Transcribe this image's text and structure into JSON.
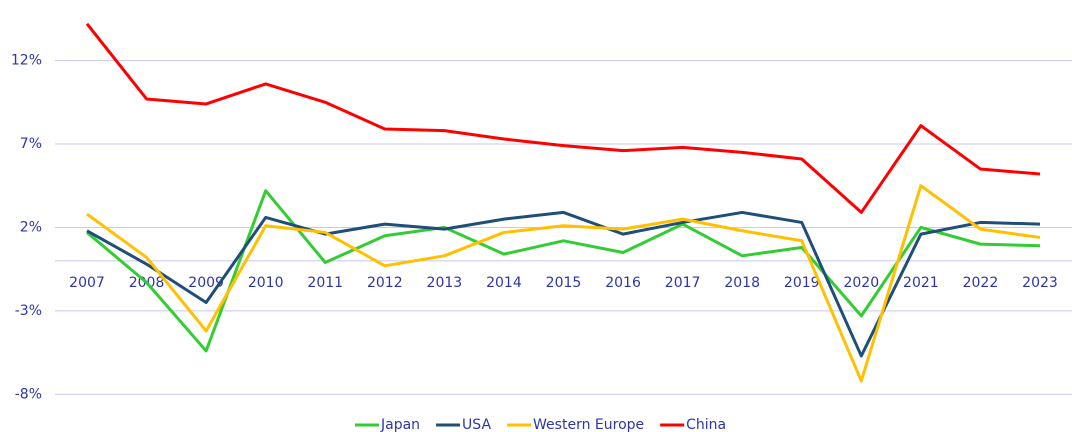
{
  "chart_data": {
    "type": "line",
    "categories": [
      "2007",
      "2008",
      "2009",
      "2010",
      "2011",
      "2012",
      "2013",
      "2014",
      "2015",
      "2016",
      "2017",
      "2018",
      "2019",
      "2020",
      "2021",
      "2022",
      "2023"
    ],
    "series": [
      {
        "name": "Japan",
        "color": "#33cc33",
        "values": [
          1.7,
          -1.3,
          -5.4,
          4.2,
          -0.1,
          1.5,
          2.0,
          0.4,
          1.2,
          0.5,
          2.2,
          0.3,
          0.8,
          -3.3,
          2.0,
          1.0,
          0.9
        ]
      },
      {
        "name": "USA",
        "color": "#1f4e79",
        "values": [
          1.8,
          -0.2,
          -2.5,
          2.6,
          1.6,
          2.2,
          1.9,
          2.5,
          2.9,
          1.6,
          2.3,
          2.9,
          2.3,
          -5.7,
          1.6,
          2.3,
          2.2
        ]
      },
      {
        "name": "Western Europe",
        "color": "#ffc000",
        "values": [
          2.8,
          0.2,
          -4.2,
          2.1,
          1.7,
          -0.3,
          0.3,
          1.7,
          2.1,
          1.9,
          2.5,
          1.8,
          1.2,
          -7.2,
          4.5,
          1.9,
          1.4
        ]
      },
      {
        "name": "China",
        "color": "#ff0000",
        "values": [
          14.2,
          9.7,
          9.4,
          10.6,
          9.5,
          7.9,
          7.8,
          7.3,
          6.9,
          6.6,
          6.8,
          6.5,
          6.1,
          2.9,
          8.1,
          5.5,
          5.2
        ]
      }
    ],
    "ylim": [
      -9,
      15
    ],
    "yticks": [
      {
        "value": -8,
        "label": "-8%"
      },
      {
        "value": -3,
        "label": "-3%"
      },
      {
        "value": 2,
        "label": "2%"
      },
      {
        "value": 7,
        "label": "7%"
      },
      {
        "value": 12,
        "label": "12%"
      }
    ],
    "grid": true,
    "legend": "bottom"
  }
}
